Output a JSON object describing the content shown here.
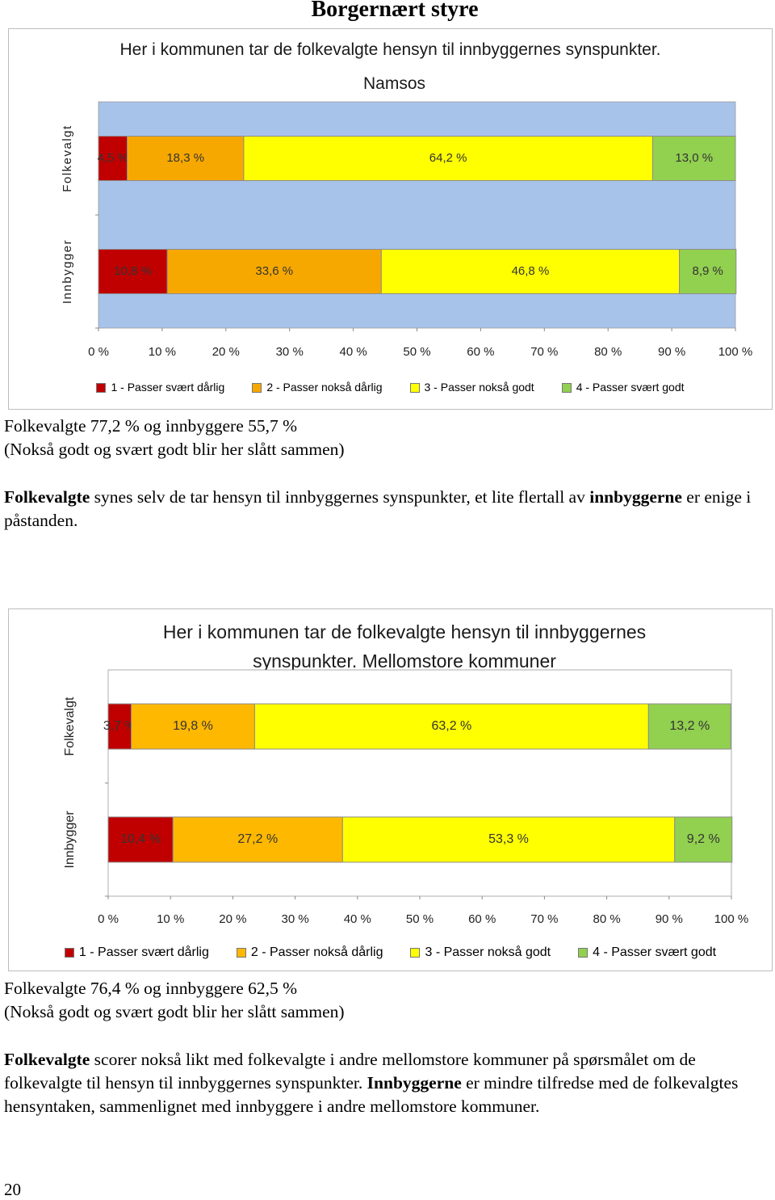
{
  "title": "Borgernært styre",
  "chart_data": [
    {
      "type": "bar",
      "orientation": "horizontal",
      "stacked": true,
      "title": "Her i kommunen tar de folkevalgte hensyn til innbyggernes synspunkter.",
      "subtitle": "Namsos",
      "categories": [
        "Folkevalgt",
        "Innbygger"
      ],
      "series": [
        {
          "name": "1 - Passer svært dårlig",
          "color": "#c00000",
          "values": [
            4.5,
            10.8
          ],
          "value_labels": [
            "4,5 %",
            "10,8 %"
          ]
        },
        {
          "name": "2 - Passer nokså dårlig",
          "color": "#f7a800",
          "values": [
            18.3,
            33.6
          ],
          "value_labels": [
            "18,3 %",
            "33,6 %"
          ]
        },
        {
          "name": "3 - Passer nokså godt",
          "color": "#ffff00",
          "values": [
            64.2,
            46.8
          ],
          "value_labels": [
            "64,2 %",
            "46,8 %"
          ]
        },
        {
          "name": "4 - Passer svært godt",
          "color": "#92d050",
          "values": [
            13.0,
            8.9
          ],
          "value_labels": [
            "13,0 %",
            "8,9 %"
          ]
        }
      ],
      "xlim": [
        0,
        100
      ],
      "xticks": [
        {
          "value": 0,
          "label": "0 %"
        },
        {
          "value": 10,
          "label": "10 %"
        },
        {
          "value": 20,
          "label": "20 %"
        },
        {
          "value": 30,
          "label": "30 %"
        },
        {
          "value": 40,
          "label": "40 %"
        },
        {
          "value": 50,
          "label": "50 %"
        },
        {
          "value": 60,
          "label": "60 %"
        },
        {
          "value": 70,
          "label": "70 %"
        },
        {
          "value": 80,
          "label": "80 %"
        },
        {
          "value": 90,
          "label": "90 %"
        },
        {
          "value": 100,
          "label": "100 %"
        }
      ],
      "legend": "bottom",
      "plot_background": "#a8c3ea"
    },
    {
      "type": "bar",
      "orientation": "horizontal",
      "stacked": true,
      "title": "Her i kommunen tar de folkevalgte hensyn til innbyggernes synspunkter. Mellomstore kommuner",
      "categories": [
        "Folkevalgt",
        "Innbygger"
      ],
      "series": [
        {
          "name": "1 - Passer svært dårlig",
          "color": "#c00000",
          "values": [
            3.7,
            10.4
          ],
          "value_labels": [
            "3,7 %",
            "10,4 %"
          ]
        },
        {
          "name": "2 - Passer nokså dårlig",
          "color": "#ffb800",
          "values": [
            19.8,
            27.2
          ],
          "value_labels": [
            "19,8 %",
            "27,2 %"
          ]
        },
        {
          "name": "3 - Passer nokså godt",
          "color": "#ffff00",
          "values": [
            63.2,
            53.3
          ],
          "value_labels": [
            "63,2 %",
            "53,3 %"
          ]
        },
        {
          "name": "4 - Passer svært godt",
          "color": "#92d050",
          "values": [
            13.2,
            9.2
          ],
          "value_labels": [
            "13,2 %",
            "9,2 %"
          ]
        }
      ],
      "xlim": [
        0,
        100
      ],
      "xticks": [
        {
          "value": 0,
          "label": "0 %"
        },
        {
          "value": 10,
          "label": "10 %"
        },
        {
          "value": 20,
          "label": "20 %"
        },
        {
          "value": 30,
          "label": "30 %"
        },
        {
          "value": 40,
          "label": "40 %"
        },
        {
          "value": 50,
          "label": "50 %"
        },
        {
          "value": 60,
          "label": "60 %"
        },
        {
          "value": 70,
          "label": "70 %"
        },
        {
          "value": 80,
          "label": "80 %"
        },
        {
          "value": 90,
          "label": "90 %"
        },
        {
          "value": 100,
          "label": "100 %"
        }
      ],
      "legend": "bottom",
      "plot_background": "#ffffff"
    }
  ],
  "sections": [
    {
      "summary": [
        "Folkevalgte 77,2 % og innbyggere 55,7 %",
        "(Nokså godt og svært godt blir her slått sammen)"
      ],
      "paragraph": [
        "Folkevalgte",
        " synes selv de tar hensyn til innbyggernes synspunkter, et lite flertall av ",
        "innbyggerne",
        " er enige i påstanden."
      ]
    },
    {
      "summary": [
        "Folkevalgte 76,4 % og innbyggere 62,5 %",
        "(Nokså godt og svært godt blir her slått sammen)"
      ],
      "paragraph": [
        "Folkevalgte",
        " scorer nokså likt med folkevalgte i andre mellomstore kommuner på spørsmålet om de folkevalgte til hensyn til innbyggernes synspunkter. ",
        "Innbyggerne",
        " er mindre tilfredse med de folkevalgtes hensyntaken, sammenlignet med innbyggere i andre mellomstore kommuner."
      ]
    }
  ],
  "page_number": "20"
}
